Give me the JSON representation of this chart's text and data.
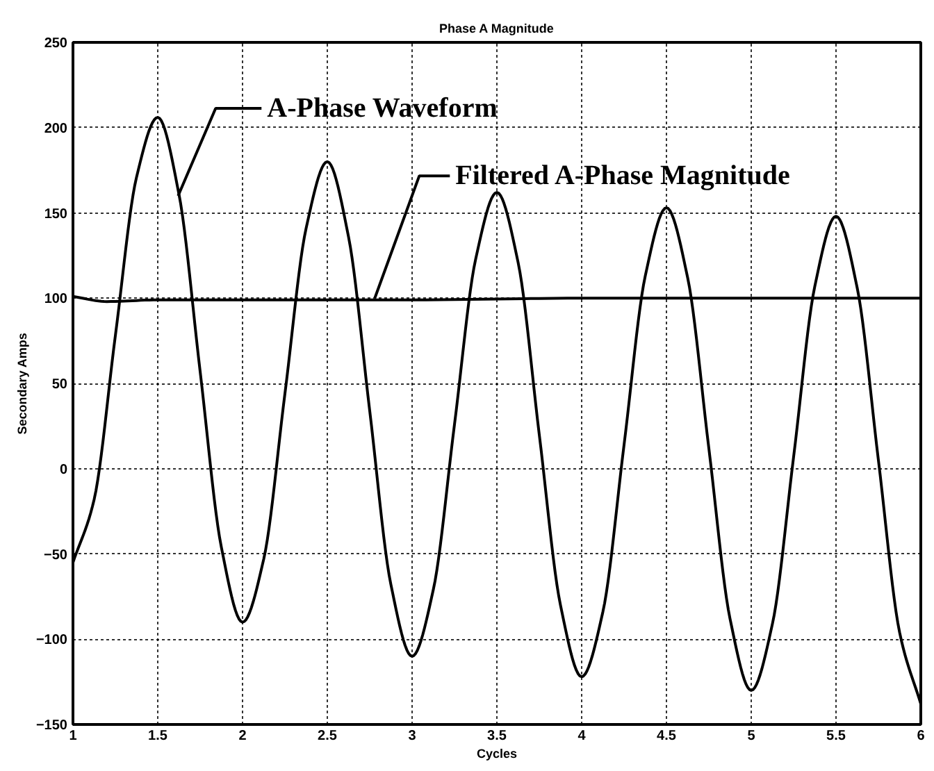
{
  "chart_data": {
    "type": "line",
    "title": "Phase A Magnitude",
    "xlabel": "Cycles",
    "ylabel": "Secondary Amps",
    "xlim": [
      1,
      6
    ],
    "xticks": [
      1,
      1.5,
      2,
      2.5,
      3,
      3.5,
      4,
      4.5,
      5,
      5.5,
      6
    ],
    "ylim": [
      -150,
      250
    ],
    "yticks": [
      -150,
      -100,
      -50,
      0,
      50,
      100,
      150,
      200,
      250
    ],
    "grid": true,
    "marker": "none",
    "line_style": "solid",
    "series": [
      {
        "color": "#000000",
        "x": [
          1,
          1.125,
          1.25,
          1.375,
          1.5,
          1.625,
          1.75,
          1.875,
          2,
          2.125,
          2.25,
          2.375,
          2.5,
          2.625,
          2.75,
          2.875,
          3,
          3.125,
          3.25,
          3.375,
          3.5,
          3.625,
          3.75,
          3.875,
          4,
          4.125,
          4.25,
          4.375,
          4.5,
          4.625,
          4.75,
          4.875,
          5,
          5.125,
          5.25,
          5.375,
          5.5,
          5.625,
          5.75,
          5.875,
          6
        ],
        "values": [
          -55,
          -18,
          78,
          171,
          206,
          161,
          57,
          -46,
          -90,
          -53,
          44,
          141,
          180,
          136,
          34,
          -68,
          -110,
          -71,
          26,
          123,
          162,
          121,
          20,
          -80,
          -122,
          -84,
          14,
          113,
          153,
          112,
          12,
          -88,
          -130,
          -91,
          7,
          107,
          148,
          106,
          5,
          -96,
          -138
        ]
      },
      {
        "color": "#000000",
        "x": [
          1,
          1.2,
          1.5,
          2,
          3,
          4,
          5,
          6
        ],
        "values": [
          101,
          98,
          99,
          99,
          99,
          100,
          100,
          100
        ]
      }
    ],
    "annotations": [
      {
        "text": "A-Phase Waveform",
        "x": 1.62,
        "y": 160
      },
      {
        "text": "Filtered A-Phase Magnitude",
        "x": 2.78,
        "y": 100
      }
    ]
  }
}
